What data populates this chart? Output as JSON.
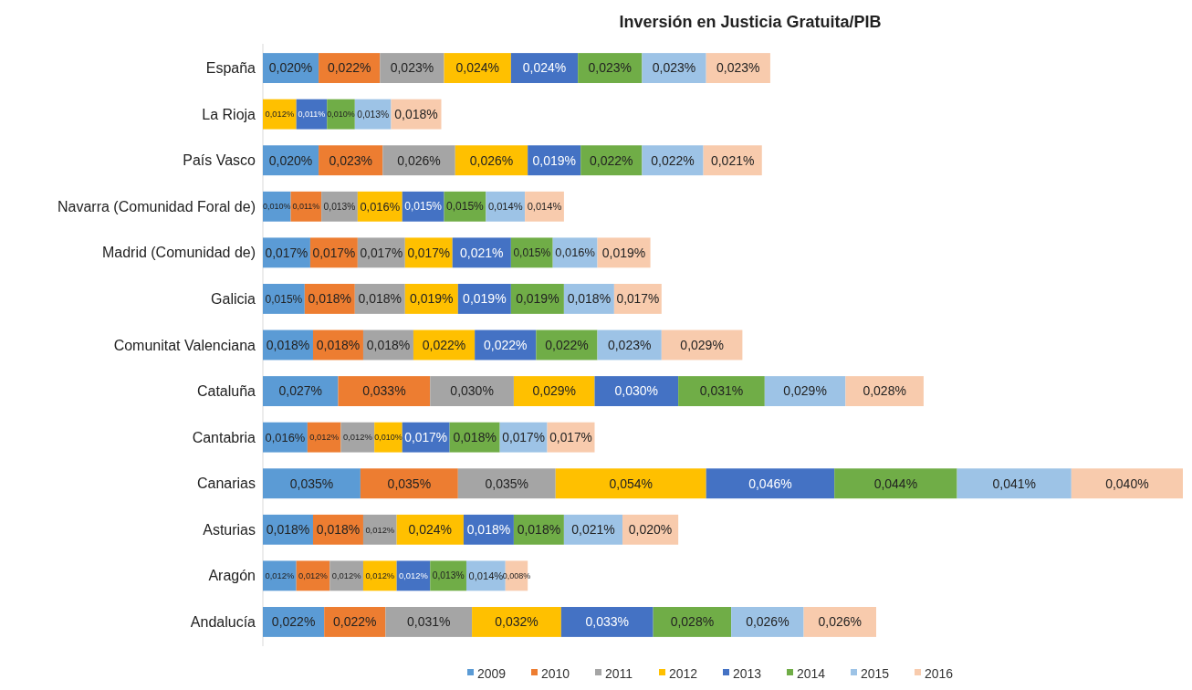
{
  "chart_data": {
    "type": "bar",
    "orientation": "horizontal",
    "stacked": true,
    "title": "Inversión en Justicia Gratuita/PIB",
    "legend": "bottom",
    "data_labels": true,
    "categories": [
      "España",
      "La Rioja",
      "País Vasco",
      "Navarra (Comunidad Foral de)",
      "Madrid (Comunidad de)",
      "Galicia",
      "Comunitat Valenciana",
      "Cataluña",
      "Cantabria",
      "Canarias",
      "Asturias",
      "Aragón",
      "Andalucía"
    ],
    "series": [
      {
        "name": "2009",
        "color": "#5b9bd5",
        "values": [
          0.02,
          null,
          0.02,
          0.01,
          0.017,
          0.015,
          0.018,
          0.027,
          0.016,
          0.035,
          0.018,
          0.012,
          0.022
        ],
        "value_labels": [
          "0,020%",
          null,
          "0,020%",
          "0,010%",
          "0,017%",
          "0,015%",
          "0,018%",
          "0,027%",
          "0,016%",
          "0,035%",
          "0,018%",
          "0,012%",
          "0,022%"
        ]
      },
      {
        "name": "2010",
        "color": "#ed7d31",
        "values": [
          0.022,
          null,
          0.023,
          0.011,
          0.017,
          0.018,
          0.018,
          0.033,
          0.012,
          0.035,
          0.018,
          0.012,
          0.022
        ],
        "value_labels": [
          "0,022%",
          null,
          "0,023%",
          "0,011%",
          "0,017%",
          "0,018%",
          "0,018%",
          "0,033%",
          "0,012%",
          "0,035%",
          "0,018%",
          "0,012%",
          "0,022%"
        ]
      },
      {
        "name": "2011",
        "color": "#a5a5a5",
        "values": [
          0.023,
          null,
          0.026,
          0.013,
          0.017,
          0.018,
          0.018,
          0.03,
          0.012,
          0.035,
          0.012,
          0.012,
          0.031
        ],
        "value_labels": [
          "0,023%",
          null,
          "0,026%",
          "0,013%",
          "0,017%",
          "0,018%",
          "0,018%",
          "0,030%",
          "0,012%",
          "0,035%",
          "0,012%",
          "0,012%",
          "0,031%"
        ]
      },
      {
        "name": "2012",
        "color": "#ffc000",
        "values": [
          0.024,
          0.012,
          0.026,
          0.016,
          0.017,
          0.019,
          0.022,
          0.029,
          0.01,
          0.054,
          0.024,
          0.012,
          0.032
        ],
        "value_labels": [
          "0,024%",
          "0,012%",
          "0,026%",
          "0,016%",
          "0,017%",
          "0,019%",
          "0,022%",
          "0,029%",
          "0,010%",
          "0,054%",
          "0,024%",
          "0,012%",
          "0,032%"
        ]
      },
      {
        "name": "2013",
        "color": "#4472c4",
        "values": [
          0.024,
          0.011,
          0.019,
          0.015,
          0.021,
          0.019,
          0.022,
          0.03,
          0.017,
          0.046,
          0.018,
          0.012,
          0.033
        ],
        "value_labels": [
          "0,024%",
          "0,011%",
          "0,019%",
          "0,015%",
          "0,021%",
          "0,019%",
          "0,022%",
          "0,030%",
          "0,017%",
          "0,046%",
          "0,018%",
          "0,012%",
          "0,033%"
        ]
      },
      {
        "name": "2014",
        "color": "#70ad47",
        "values": [
          0.023,
          0.01,
          0.022,
          0.015,
          0.015,
          0.019,
          0.022,
          0.031,
          0.018,
          0.044,
          0.018,
          0.013,
          0.028
        ],
        "value_labels": [
          "0,023%",
          "0,010%",
          "0,022%",
          "0,015%",
          "0,015%",
          "0,019%",
          "0,022%",
          "0,031%",
          "0,018%",
          "0,044%",
          "0,018%",
          "0,013%",
          "0,028%"
        ]
      },
      {
        "name": "2015",
        "color": "#9dc3e6",
        "values": [
          0.023,
          0.013,
          0.022,
          0.014,
          0.016,
          0.018,
          0.023,
          0.029,
          0.017,
          0.041,
          0.021,
          0.014,
          0.026
        ],
        "value_labels": [
          "0,023%",
          "0,013%",
          "0,022%",
          "0,014%",
          "0,016%",
          "0,018%",
          "0,023%",
          "0,029%",
          "0,017%",
          "0,041%",
          "0,021%",
          "0,014%",
          "0,026%"
        ]
      },
      {
        "name": "2016",
        "color": "#f8cbad",
        "values": [
          0.023,
          0.018,
          0.021,
          0.014,
          0.019,
          0.017,
          0.029,
          0.028,
          0.017,
          0.04,
          0.02,
          0.008,
          0.026
        ],
        "value_labels": [
          "0,023%",
          "0,018%",
          "0,021%",
          "0,014%",
          "0,019%",
          "0,017%",
          "0,029%",
          "0,028%",
          "0,017%",
          "0,040%",
          "0,020%",
          "0,008%",
          "0,026%"
        ]
      }
    ]
  }
}
